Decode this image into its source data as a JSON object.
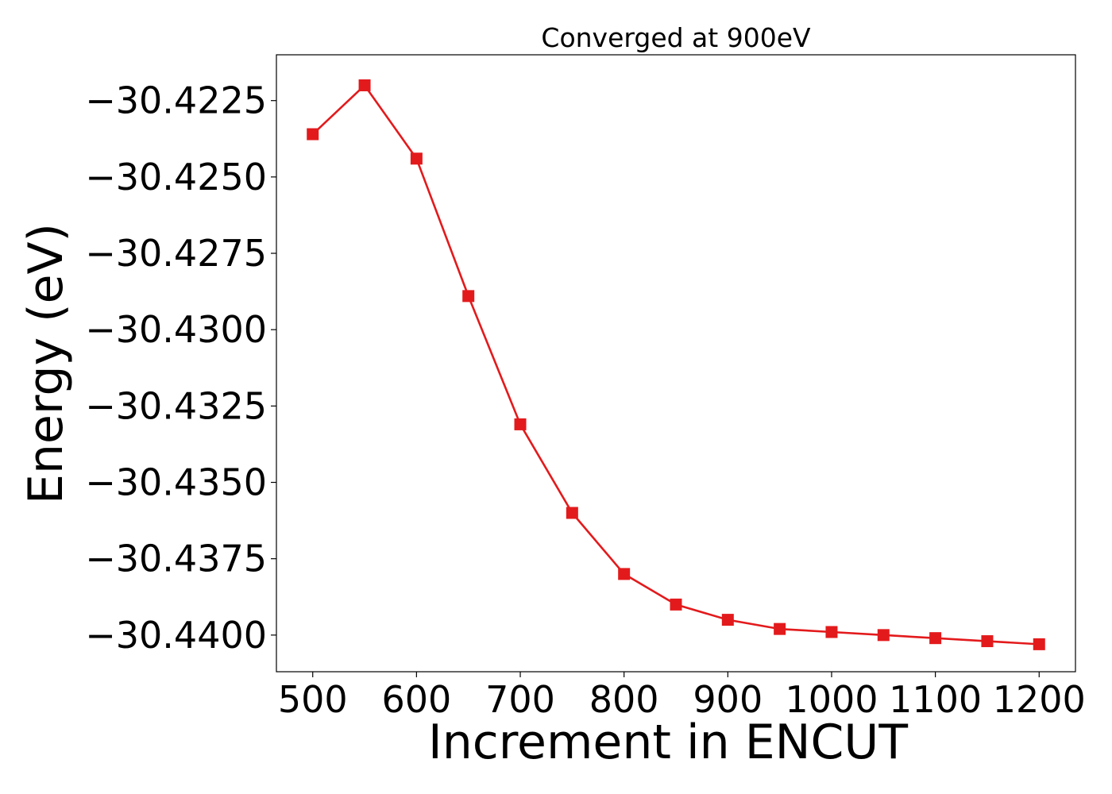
{
  "chart_data": {
    "type": "line",
    "title": "Converged at 900eV",
    "xlabel": "Increment in ENCUT",
    "ylabel": "Energy (eV)",
    "xlim": [
      465,
      1235
    ],
    "ylim": [
      -30.4412,
      -30.421
    ],
    "xticks": [
      500,
      600,
      700,
      800,
      900,
      1000,
      1100,
      1200
    ],
    "xtick_labels": [
      "500",
      "600",
      "700",
      "800",
      "900",
      "1000",
      "1100",
      "1200"
    ],
    "yticks": [
      -30.4225,
      -30.425,
      -30.4275,
      -30.43,
      -30.4325,
      -30.435,
      -30.4375,
      -30.44
    ],
    "ytick_labels": [
      "−30.4225",
      "−30.4250",
      "−30.4275",
      "−30.4300",
      "−30.4325",
      "−30.4350",
      "−30.4375",
      "−30.4400"
    ],
    "grid": false,
    "legend": "none",
    "series": [
      {
        "marker": "square",
        "color": "#e31a1c",
        "x": [
          500,
          550,
          600,
          650,
          700,
          750,
          800,
          850,
          900,
          950,
          1000,
          1050,
          1100,
          1150,
          1200
        ],
        "y": [
          -30.4236,
          -30.422,
          -30.4244,
          -30.4289,
          -30.4331,
          -30.436,
          -30.438,
          -30.439,
          -30.4395,
          -30.4398,
          -30.4399,
          -30.44,
          -30.4401,
          -30.4402,
          -30.4403
        ]
      }
    ]
  }
}
